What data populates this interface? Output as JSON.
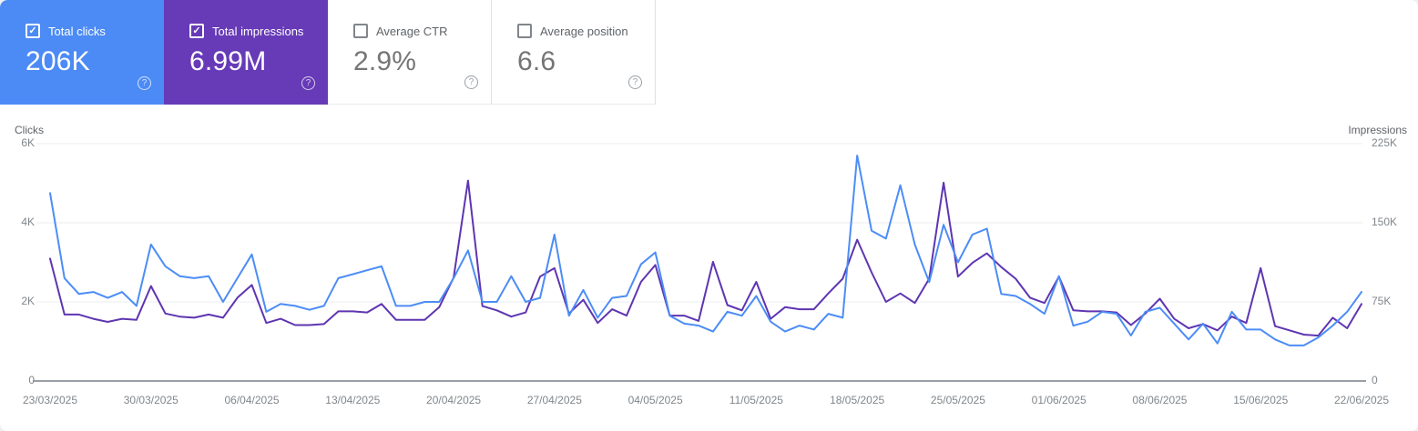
{
  "cards": [
    {
      "id": "total-clicks",
      "label": "Total clicks",
      "value": "206K",
      "checked": true,
      "selected": true,
      "bg": "#4c8bf5"
    },
    {
      "id": "total-impressions",
      "label": "Total impressions",
      "value": "6.99M",
      "checked": true,
      "selected": true,
      "bg": "#673ab7"
    },
    {
      "id": "average-ctr",
      "label": "Average CTR",
      "value": "2.9%",
      "checked": false,
      "selected": false,
      "bg": "#ffffff"
    },
    {
      "id": "average-position",
      "label": "Average position",
      "value": "6.6",
      "checked": false,
      "selected": false,
      "bg": "#ffffff"
    }
  ],
  "help_icon_glyph": "?",
  "checkbox_check_glyph": "✓",
  "chart_data": {
    "type": "line",
    "x_label_dates": [
      "23/03/2025",
      "30/03/2025",
      "06/04/2025",
      "13/04/2025",
      "20/04/2025",
      "27/04/2025",
      "04/05/2025",
      "11/05/2025",
      "18/05/2025",
      "25/05/2025",
      "01/06/2025",
      "08/06/2025",
      "15/06/2025",
      "22/06/2025"
    ],
    "x_label_every_n_days": 7,
    "left_axis": {
      "title": "Clicks",
      "ticks": [
        "6K",
        "4K",
        "2K",
        "0"
      ],
      "max": 6000
    },
    "right_axis": {
      "title": "Impressions",
      "ticks": [
        "225K",
        "150K",
        "75K",
        "0"
      ],
      "max": 225000
    },
    "grid": true,
    "colors": {
      "axis_line": "#9aa0a6",
      "gridline": "#ebedef"
    },
    "series": [
      {
        "name": "Impressions",
        "axis": "right",
        "color": "#5e35b1",
        "values": [
          116000,
          63000,
          63000,
          59000,
          56000,
          59000,
          58000,
          90000,
          64000,
          61000,
          60000,
          63000,
          60000,
          79000,
          91000,
          55000,
          59000,
          53000,
          53000,
          54000,
          66000,
          66000,
          65000,
          73000,
          58000,
          58000,
          58000,
          70000,
          98000,
          190000,
          71000,
          67000,
          61000,
          65000,
          99000,
          107000,
          64000,
          77000,
          55000,
          68000,
          62000,
          94000,
          110000,
          62000,
          62000,
          57000,
          113000,
          72000,
          67000,
          94000,
          59000,
          70000,
          68000,
          68000,
          83000,
          97000,
          134000,
          103000,
          75000,
          83000,
          74000,
          97000,
          188000,
          99000,
          112000,
          121000,
          108000,
          97000,
          79000,
          74000,
          99000,
          67000,
          66000,
          66000,
          65000,
          53000,
          64000,
          78000,
          59000,
          50000,
          54000,
          48000,
          61000,
          55000,
          107000,
          52000,
          48000,
          44000,
          43000,
          60000,
          50000,
          73000
        ]
      },
      {
        "name": "Clicks",
        "axis": "left",
        "color": "#4c8df6",
        "values": [
          4750,
          2600,
          2200,
          2250,
          2100,
          2250,
          1900,
          3450,
          2900,
          2650,
          2600,
          2650,
          2000,
          2600,
          3200,
          1750,
          1950,
          1900,
          1800,
          1900,
          2600,
          2700,
          2800,
          2900,
          1900,
          1900,
          2000,
          2000,
          2600,
          3300,
          2000,
          2000,
          2650,
          2000,
          2100,
          3700,
          1650,
          2300,
          1600,
          2100,
          2150,
          2950,
          3250,
          1650,
          1450,
          1400,
          1250,
          1750,
          1650,
          2150,
          1500,
          1250,
          1400,
          1300,
          1700,
          1600,
          5700,
          3800,
          3600,
          4950,
          3450,
          2500,
          3950,
          3000,
          3700,
          3850,
          2200,
          2150,
          1950,
          1700,
          2650,
          1400,
          1500,
          1750,
          1700,
          1150,
          1750,
          1850,
          1450,
          1050,
          1450,
          950,
          1750,
          1300,
          1300,
          1050,
          900,
          900,
          1100,
          1400,
          1750,
          2250
        ]
      }
    ]
  }
}
